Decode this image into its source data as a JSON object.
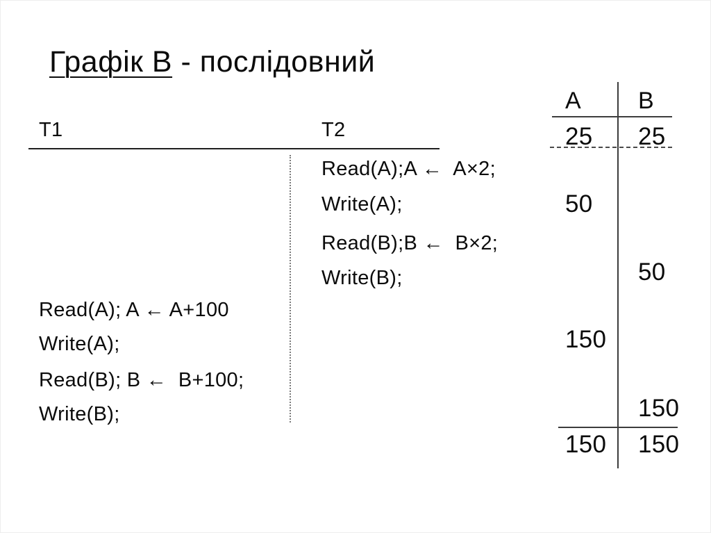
{
  "title": {
    "underlined": "Графік В",
    "rest": " - послідовний"
  },
  "schedule": {
    "t1_header": "T1",
    "t2_header": "T2",
    "t2_lines": [
      "Read(A);A ←  A×2;",
      "Write(A);",
      "Read(B);B ←  B×2;",
      "Write(B);"
    ],
    "t1_lines": [
      "Read(A); A ← A+100",
      "Write(A);",
      "Read(B); B ←  B+100;",
      "Write(B);"
    ]
  },
  "values_table": {
    "a_header": "A",
    "b_header": "B",
    "initial": {
      "a": "25",
      "b": "25"
    },
    "progress": [
      {
        "column": "A",
        "value": "50"
      },
      {
        "column": "B",
        "value": "50"
      },
      {
        "column": "A",
        "value": "150"
      },
      {
        "column": "B",
        "value": "150"
      }
    ],
    "final": {
      "a": "150",
      "b": "150"
    }
  },
  "colors": {
    "text": "#0b0b0b",
    "solid_rule": "#1e1e1e",
    "table_rule": "#3c3c3c",
    "dotted_divider": "#7a7a7a",
    "slide_border": "#ededed",
    "background": "#ffffff"
  }
}
